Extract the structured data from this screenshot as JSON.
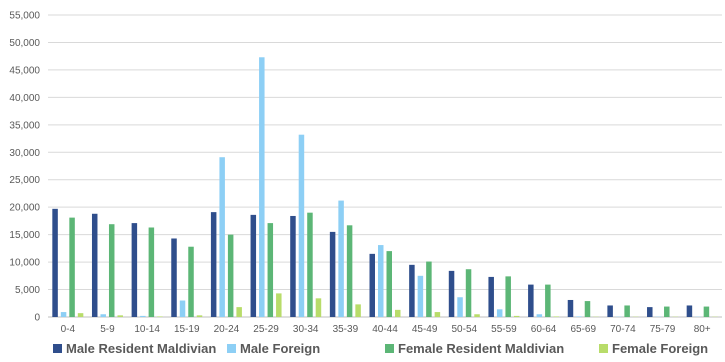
{
  "chart_data": {
    "type": "bar",
    "categories": [
      "0-4",
      "5-9",
      "10-14",
      "15-19",
      "20-24",
      "25-29",
      "30-34",
      "35-39",
      "40-44",
      "45-49",
      "50-54",
      "55-59",
      "60-64",
      "65-69",
      "70-74",
      "75-79",
      "80+"
    ],
    "series": [
      {
        "name": "Male Resident Maldivian",
        "color": "#2F4E8C",
        "values": [
          19700,
          18800,
          17100,
          14300,
          19100,
          18600,
          18400,
          15500,
          11500,
          9500,
          8400,
          7300,
          5900,
          3100,
          2100,
          1800,
          2100
        ]
      },
      {
        "name": "Male Foreign",
        "color": "#8DCFF5",
        "values": [
          900,
          500,
          200,
          3000,
          29100,
          47300,
          33200,
          21200,
          13100,
          7500,
          3600,
          1400,
          500,
          100,
          50,
          50,
          50
        ]
      },
      {
        "name": "Female Resident Maldivian",
        "color": "#5CB676",
        "values": [
          18100,
          16900,
          16300,
          12800,
          15000,
          17100,
          19000,
          16700,
          12000,
          10100,
          8700,
          7400,
          5900,
          2900,
          2100,
          1900,
          1900
        ]
      },
      {
        "name": "Female Foreign",
        "color": "#B8DC6A",
        "values": [
          700,
          300,
          100,
          300,
          1800,
          4300,
          3400,
          2300,
          1300,
          900,
          500,
          200,
          100,
          50,
          50,
          50,
          50
        ]
      }
    ],
    "yticks": [
      "0",
      "5,000",
      "10,000",
      "15,000",
      "20,000",
      "25,000",
      "30,000",
      "35,000",
      "40,000",
      "45,000",
      "50,000",
      "55,000"
    ],
    "ylim": [
      0,
      55000
    ],
    "grid": true,
    "legend_position": "bottom",
    "title": "",
    "xlabel": "",
    "ylabel": ""
  }
}
